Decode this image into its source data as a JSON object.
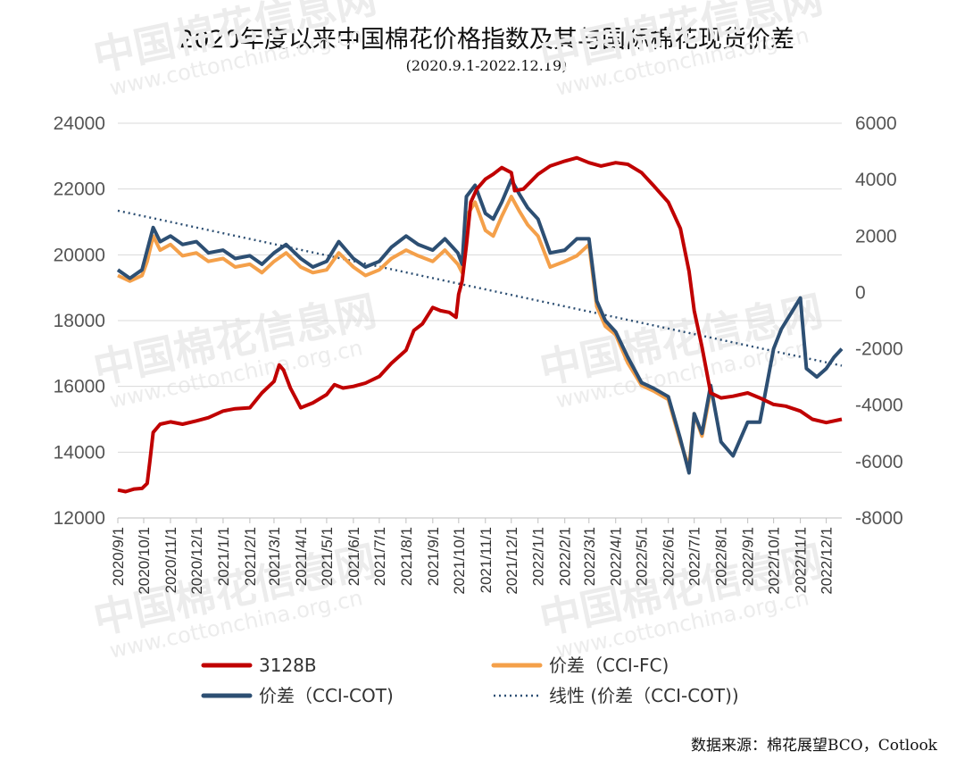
{
  "chart_data": {
    "type": "line",
    "title": "2020年度以来中国棉花价格指数及其与国际棉花现货价差",
    "subtitle": "(2020.9.1-2022.12.19)",
    "source": "数据来源：棉花展望BCO，Cotlook",
    "watermark": {
      "cn": "中国棉花信息网",
      "url": "www.cottonchina.org.cn"
    },
    "x_axis": {
      "range": [
        "2020-09-01",
        "2022-12-19"
      ],
      "ticks": [
        "2020/9/1",
        "2020/10/1",
        "2020/11/1",
        "2020/12/1",
        "2021/1/1",
        "2021/2/1",
        "2021/3/1",
        "2021/4/1",
        "2021/5/1",
        "2021/6/1",
        "2021/7/1",
        "2021/8/1",
        "2021/9/1",
        "2021/10/1",
        "2021/11/1",
        "2021/12/1",
        "2022/1/1",
        "2022/2/1",
        "2022/3/1",
        "2022/4/1",
        "2022/5/1",
        "2022/6/1",
        "2022/7/1",
        "2022/8/1",
        "2022/9/1",
        "2022/10/1",
        "2022/11/1",
        "2022/12/1"
      ]
    },
    "y_left": {
      "min": 12000,
      "max": 24000,
      "ticks": [
        "12000",
        "14000",
        "16000",
        "18000",
        "20000",
        "22000",
        "24000"
      ]
    },
    "y_right": {
      "min": -8000,
      "max": 6000,
      "ticks": [
        "-8000",
        "-6000",
        "-4000",
        "-2000",
        "0",
        "2000",
        "4000",
        "6000"
      ]
    },
    "grid": "horizontal",
    "legend": {
      "position": "bottom",
      "items": [
        {
          "label": "3128B",
          "color": "#c00000",
          "style": "solid"
        },
        {
          "label": "价差（CCI-FC)",
          "color": "#f4a04a",
          "style": "solid"
        },
        {
          "label": "价差（CCI-COT)",
          "color": "#2d4f73",
          "style": "solid"
        },
        {
          "label": "线性 (价差（CCI-COT))",
          "color": "#2d4f73",
          "style": "dotted"
        }
      ]
    },
    "series": [
      {
        "name": "3128B",
        "axis": "left",
        "color": "#c00000",
        "points": [
          [
            "2020-09-01",
            12850
          ],
          [
            "2020-09-10",
            12800
          ],
          [
            "2020-09-20",
            12880
          ],
          [
            "2020-09-29",
            12900
          ],
          [
            "2020-10-05",
            13050
          ],
          [
            "2020-10-08",
            13700
          ],
          [
            "2020-10-12",
            14600
          ],
          [
            "2020-10-20",
            14850
          ],
          [
            "2020-11-01",
            14920
          ],
          [
            "2020-11-15",
            14850
          ],
          [
            "2020-12-01",
            14950
          ],
          [
            "2020-12-15",
            15050
          ],
          [
            "2021-01-01",
            15250
          ],
          [
            "2021-01-15",
            15320
          ],
          [
            "2021-02-01",
            15350
          ],
          [
            "2021-02-15",
            15800
          ],
          [
            "2021-03-01",
            16150
          ],
          [
            "2021-03-07",
            16650
          ],
          [
            "2021-03-12",
            16500
          ],
          [
            "2021-03-20",
            15950
          ],
          [
            "2021-04-01",
            15350
          ],
          [
            "2021-04-15",
            15500
          ],
          [
            "2021-05-01",
            15750
          ],
          [
            "2021-05-10",
            16050
          ],
          [
            "2021-05-20",
            15950
          ],
          [
            "2021-06-01",
            16000
          ],
          [
            "2021-06-15",
            16100
          ],
          [
            "2021-07-01",
            16300
          ],
          [
            "2021-07-15",
            16700
          ],
          [
            "2021-08-01",
            17100
          ],
          [
            "2021-08-10",
            17700
          ],
          [
            "2021-08-20",
            17900
          ],
          [
            "2021-09-01",
            18400
          ],
          [
            "2021-09-10",
            18300
          ],
          [
            "2021-09-20",
            18250
          ],
          [
            "2021-09-28",
            18100
          ],
          [
            "2021-10-01",
            18800
          ],
          [
            "2021-10-05",
            19200
          ],
          [
            "2021-10-10",
            20300
          ],
          [
            "2021-10-15",
            21600
          ],
          [
            "2021-10-22",
            22000
          ],
          [
            "2021-11-01",
            22300
          ],
          [
            "2021-11-10",
            22450
          ],
          [
            "2021-11-20",
            22650
          ],
          [
            "2021-12-01",
            22500
          ],
          [
            "2021-12-05",
            21950
          ],
          [
            "2021-12-15",
            22000
          ],
          [
            "2022-01-01",
            22450
          ],
          [
            "2022-01-15",
            22700
          ],
          [
            "2022-02-01",
            22850
          ],
          [
            "2022-02-15",
            22950
          ],
          [
            "2022-03-01",
            22800
          ],
          [
            "2022-03-15",
            22700
          ],
          [
            "2022-04-01",
            22800
          ],
          [
            "2022-04-15",
            22750
          ],
          [
            "2022-05-01",
            22500
          ],
          [
            "2022-05-15",
            22100
          ],
          [
            "2022-06-01",
            21600
          ],
          [
            "2022-06-15",
            20800
          ],
          [
            "2022-06-25",
            19500
          ],
          [
            "2022-07-01",
            18300
          ],
          [
            "2022-07-10",
            17200
          ],
          [
            "2022-07-20",
            15800
          ],
          [
            "2022-08-01",
            15650
          ],
          [
            "2022-08-15",
            15700
          ],
          [
            "2022-09-01",
            15800
          ],
          [
            "2022-09-15",
            15650
          ],
          [
            "2022-10-01",
            15450
          ],
          [
            "2022-10-15",
            15400
          ],
          [
            "2022-11-01",
            15250
          ],
          [
            "2022-11-15",
            15000
          ],
          [
            "2022-12-01",
            14900
          ],
          [
            "2022-12-19",
            15000
          ]
        ]
      },
      {
        "name": "价差（CCI-FC)",
        "axis": "right",
        "color": "#f4a04a",
        "points": [
          [
            "2020-09-01",
            600
          ],
          [
            "2020-09-15",
            400
          ],
          [
            "2020-09-29",
            600
          ],
          [
            "2020-10-05",
            1100
          ],
          [
            "2020-10-12",
            2000
          ],
          [
            "2020-10-20",
            1500
          ],
          [
            "2020-11-01",
            1700
          ],
          [
            "2020-11-15",
            1300
          ],
          [
            "2020-12-01",
            1400
          ],
          [
            "2020-12-15",
            1100
          ],
          [
            "2021-01-01",
            1200
          ],
          [
            "2021-01-15",
            900
          ],
          [
            "2021-02-01",
            1000
          ],
          [
            "2021-02-15",
            700
          ],
          [
            "2021-03-01",
            1100
          ],
          [
            "2021-03-15",
            1400
          ],
          [
            "2021-04-01",
            900
          ],
          [
            "2021-04-15",
            700
          ],
          [
            "2021-05-01",
            800
          ],
          [
            "2021-05-15",
            1400
          ],
          [
            "2021-06-01",
            900
          ],
          [
            "2021-06-15",
            600
          ],
          [
            "2021-07-01",
            800
          ],
          [
            "2021-07-15",
            1200
          ],
          [
            "2021-08-01",
            1500
          ],
          [
            "2021-08-15",
            1300
          ],
          [
            "2021-09-01",
            1100
          ],
          [
            "2021-09-15",
            1500
          ],
          [
            "2021-09-30",
            1000
          ],
          [
            "2021-10-05",
            700
          ],
          [
            "2021-10-10",
            2700
          ],
          [
            "2021-10-20",
            3200
          ],
          [
            "2021-11-01",
            2200
          ],
          [
            "2021-11-10",
            2000
          ],
          [
            "2021-11-20",
            2700
          ],
          [
            "2021-12-01",
            3400
          ],
          [
            "2021-12-10",
            2900
          ],
          [
            "2021-12-20",
            2400
          ],
          [
            "2022-01-01",
            2000
          ],
          [
            "2022-01-15",
            900
          ],
          [
            "2022-02-01",
            1100
          ],
          [
            "2022-02-15",
            1300
          ],
          [
            "2022-03-01",
            1700
          ],
          [
            "2022-03-10",
            -500
          ],
          [
            "2022-03-20",
            -1200
          ],
          [
            "2022-04-01",
            -1500
          ],
          [
            "2022-04-15",
            -2500
          ],
          [
            "2022-05-01",
            -3300
          ],
          [
            "2022-05-15",
            -3500
          ],
          [
            "2022-06-01",
            -3800
          ],
          [
            "2022-06-15",
            -5300
          ],
          [
            "2022-06-25",
            -6200
          ],
          [
            "2022-07-01",
            -4300
          ],
          [
            "2022-07-10",
            -5100
          ],
          [
            "2022-07-20",
            -3500
          ]
        ]
      },
      {
        "name": "价差（CCI-COT)",
        "axis": "right",
        "color": "#2d4f73",
        "points": [
          [
            "2020-09-01",
            800
          ],
          [
            "2020-09-15",
            500
          ],
          [
            "2020-09-29",
            800
          ],
          [
            "2020-10-05",
            1500
          ],
          [
            "2020-10-12",
            2300
          ],
          [
            "2020-10-20",
            1800
          ],
          [
            "2020-11-01",
            2000
          ],
          [
            "2020-11-15",
            1700
          ],
          [
            "2020-12-01",
            1800
          ],
          [
            "2020-12-15",
            1400
          ],
          [
            "2021-01-01",
            1500
          ],
          [
            "2021-01-15",
            1200
          ],
          [
            "2021-02-01",
            1300
          ],
          [
            "2021-02-15",
            1000
          ],
          [
            "2021-03-01",
            1400
          ],
          [
            "2021-03-15",
            1700
          ],
          [
            "2021-04-01",
            1200
          ],
          [
            "2021-04-15",
            900
          ],
          [
            "2021-05-01",
            1100
          ],
          [
            "2021-05-15",
            1800
          ],
          [
            "2021-06-01",
            1200
          ],
          [
            "2021-06-15",
            900
          ],
          [
            "2021-07-01",
            1100
          ],
          [
            "2021-07-15",
            1600
          ],
          [
            "2021-08-01",
            2000
          ],
          [
            "2021-08-15",
            1700
          ],
          [
            "2021-09-01",
            1500
          ],
          [
            "2021-09-15",
            1900
          ],
          [
            "2021-09-30",
            1400
          ],
          [
            "2021-10-05",
            1000
          ],
          [
            "2021-10-10",
            3400
          ],
          [
            "2021-10-20",
            3800
          ],
          [
            "2021-11-01",
            2800
          ],
          [
            "2021-11-10",
            2600
          ],
          [
            "2021-11-20",
            3200
          ],
          [
            "2021-12-01",
            4000
          ],
          [
            "2021-12-10",
            3500
          ],
          [
            "2021-12-20",
            3000
          ],
          [
            "2022-01-01",
            2600
          ],
          [
            "2022-01-15",
            1400
          ],
          [
            "2022-02-01",
            1500
          ],
          [
            "2022-02-15",
            1900
          ],
          [
            "2022-03-01",
            1900
          ],
          [
            "2022-03-10",
            -300
          ],
          [
            "2022-03-20",
            -1000
          ],
          [
            "2022-04-01",
            -1400
          ],
          [
            "2022-04-15",
            -2300
          ],
          [
            "2022-05-01",
            -3200
          ],
          [
            "2022-05-15",
            -3400
          ],
          [
            "2022-06-01",
            -3700
          ],
          [
            "2022-06-15",
            -5200
          ],
          [
            "2022-06-25",
            -6400
          ],
          [
            "2022-07-01",
            -4300
          ],
          [
            "2022-07-10",
            -5000
          ],
          [
            "2022-07-20",
            -3300
          ],
          [
            "2022-08-01",
            -5300
          ],
          [
            "2022-08-15",
            -5800
          ],
          [
            "2022-09-01",
            -4600
          ],
          [
            "2022-09-15",
            -4600
          ],
          [
            "2022-10-01",
            -2000
          ],
          [
            "2022-10-10",
            -1300
          ],
          [
            "2022-10-20",
            -800
          ],
          [
            "2022-11-01",
            -200
          ],
          [
            "2022-11-08",
            -2700
          ],
          [
            "2022-11-20",
            -3000
          ],
          [
            "2022-12-01",
            -2700
          ],
          [
            "2022-12-10",
            -2300
          ],
          [
            "2022-12-19",
            -2000
          ]
        ]
      },
      {
        "name": "线性 (价差（CCI-COT))",
        "axis": "right",
        "color": "#2d4f73",
        "style": "dotted",
        "points": [
          [
            "2020-09-01",
            2900
          ],
          [
            "2022-12-19",
            -2600
          ]
        ]
      }
    ]
  }
}
